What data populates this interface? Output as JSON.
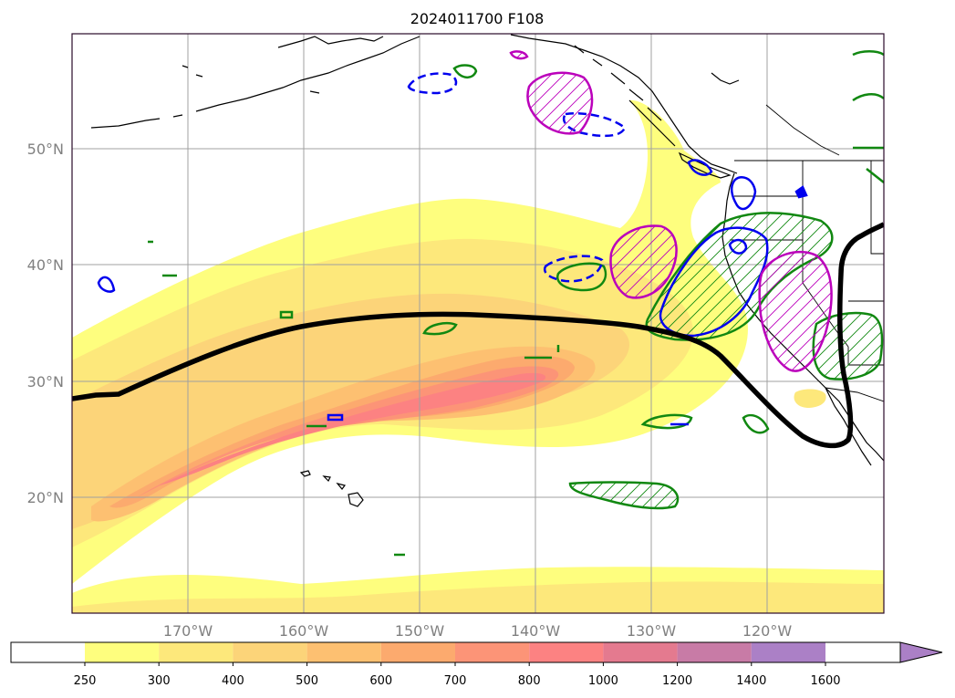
{
  "title": "2024011700 F108",
  "lat_labels": [
    "50°N",
    "40°N",
    "30°N",
    "20°N"
  ],
  "lon_labels": [
    "170°W",
    "160°W",
    "150°W",
    "140°W",
    "130°W",
    "120°W"
  ],
  "colorbar": {
    "ticks": [
      "250",
      "300",
      "400",
      "500",
      "600",
      "700",
      "800",
      "1000",
      "1200",
      "1400",
      "1600"
    ],
    "colors": [
      "#ffffff",
      "#fefe7e",
      "#fde87b",
      "#fcd479",
      "#fdc071",
      "#fcaa6e",
      "#fc9477",
      "#fc8282",
      "#e47a8f",
      "#c87ba6",
      "#ab80c6"
    ]
  },
  "colors": {
    "jet_line": "#000000",
    "contour_green": "#118811",
    "contour_blue": "#0000ee",
    "contour_magenta": "#bb00bb"
  }
}
